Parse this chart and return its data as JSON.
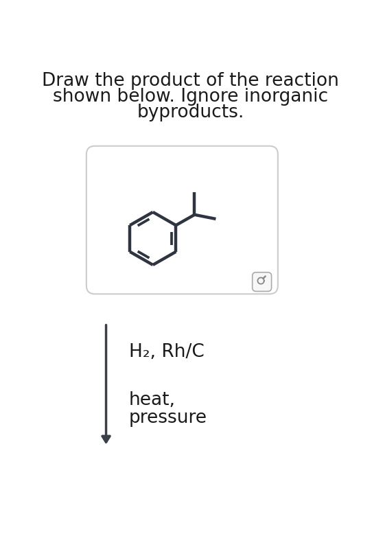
{
  "title_line1": "Draw the product of the reaction",
  "title_line2": "shown below. Ignore inorganic",
  "title_line3": "byproducts.",
  "title_fontsize": 19,
  "title_color": "#1a1a1a",
  "background_color": "#ffffff",
  "box_edge_color": "#cccccc",
  "molecule_color": "#2e3440",
  "reaction_text1": "H₂, Rh/C",
  "reaction_text2": "heat,",
  "reaction_text3": "pressure",
  "reaction_fontsize": 19,
  "arrow_color": "#3a3f4a"
}
